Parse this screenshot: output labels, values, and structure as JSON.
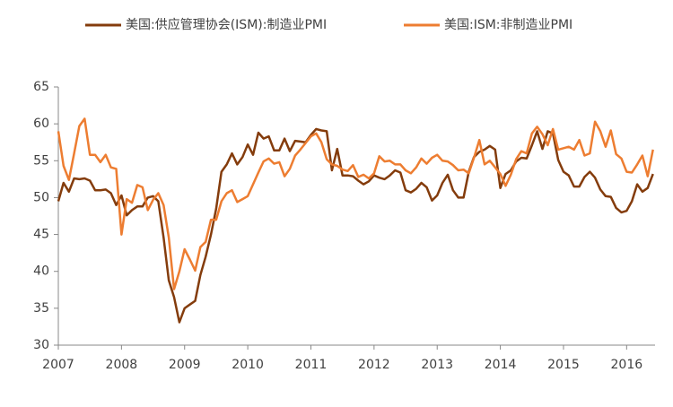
{
  "chart_data": {
    "type": "line",
    "x": [
      2007,
      2007.083,
      2007.167,
      2007.25,
      2007.333,
      2007.417,
      2007.5,
      2007.583,
      2007.667,
      2007.75,
      2007.833,
      2007.917,
      2008,
      2008.083,
      2008.167,
      2008.25,
      2008.333,
      2008.417,
      2008.5,
      2008.583,
      2008.667,
      2008.75,
      2008.833,
      2008.917,
      2009,
      2009.083,
      2009.167,
      2009.25,
      2009.333,
      2009.417,
      2009.5,
      2009.583,
      2009.667,
      2009.75,
      2009.833,
      2009.917,
      2010,
      2010.083,
      2010.167,
      2010.25,
      2010.333,
      2010.417,
      2010.5,
      2010.583,
      2010.667,
      2010.75,
      2010.833,
      2010.917,
      2011,
      2011.083,
      2011.167,
      2011.25,
      2011.333,
      2011.417,
      2011.5,
      2011.583,
      2011.667,
      2011.75,
      2011.833,
      2011.917,
      2012,
      2012.083,
      2012.167,
      2012.25,
      2012.333,
      2012.417,
      2012.5,
      2012.583,
      2012.667,
      2012.75,
      2012.833,
      2012.917,
      2013,
      2013.083,
      2013.167,
      2013.25,
      2013.333,
      2013.417,
      2013.5,
      2013.583,
      2013.667,
      2013.75,
      2013.833,
      2013.917,
      2014,
      2014.083,
      2014.167,
      2014.25,
      2014.333,
      2014.417,
      2014.5,
      2014.583,
      2014.667,
      2014.75,
      2014.833,
      2014.917,
      2015,
      2015.083,
      2015.167,
      2015.25,
      2015.333,
      2015.417,
      2015.5,
      2015.583,
      2015.667,
      2015.75,
      2015.833,
      2015.917,
      2016,
      2016.083,
      2016.167,
      2016.25,
      2016.333,
      2016.417
    ],
    "series": [
      {
        "name": "美国:供应管理协会(ISM):制造业PMI",
        "color": "#843c0c",
        "values": [
          49.5,
          52,
          50.8,
          52.6,
          52.5,
          52.6,
          52.3,
          51,
          51,
          51.1,
          50.6,
          49,
          50.3,
          47.6,
          48.3,
          48.8,
          48.8,
          50,
          50.2,
          49.5,
          44.6,
          38.8,
          36.5,
          33.1,
          35,
          35.5,
          36,
          39.5,
          42,
          45,
          48.5,
          53.5,
          54.5,
          56,
          54.5,
          55.5,
          57.2,
          55.8,
          58.8,
          58,
          58.3,
          56.4,
          56.4,
          58,
          56.3,
          57.7,
          57.6,
          57.5,
          58.5,
          59.3,
          59.1,
          59,
          53.7,
          56.6,
          53,
          53,
          52.9,
          52.3,
          51.8,
          52.2,
          53,
          52.7,
          52.5,
          53,
          53.7,
          53.4,
          51,
          50.7,
          51.2,
          52,
          51.4,
          49.6,
          50.3,
          52,
          53.1,
          51,
          50,
          50,
          53.5,
          55.5,
          56.2,
          56.5,
          57,
          56.5,
          51.3,
          53.2,
          53.7,
          54.9,
          55.4,
          55.3,
          57.1,
          59,
          56.6,
          59,
          58.7,
          55.1,
          53.5,
          53,
          51.5,
          51.5,
          52.8,
          53.5,
          52.7,
          51.1,
          50.2,
          50.1,
          48.6,
          48,
          48.2,
          49.5,
          51.8,
          50.8,
          51.3,
          53.2
        ]
      },
      {
        "name": "美国:ISM:非制造业PMI",
        "color": "#ed7d31",
        "values": [
          59,
          54.3,
          52.4,
          56,
          59.7,
          60.7,
          55.8,
          55.8,
          54.8,
          55.8,
          54.1,
          53.9,
          45,
          49.8,
          49.3,
          51.7,
          51.4,
          48.3,
          49.7,
          50.6,
          49,
          44.6,
          37.6,
          40,
          43,
          41.6,
          40.1,
          43.3,
          44,
          47,
          47,
          49.5,
          50.6,
          51,
          49.4,
          49.8,
          50.2,
          51.8,
          53.4,
          54.9,
          55.3,
          54.6,
          54.8,
          52.9,
          53.9,
          55.7,
          56.5,
          57.4,
          58.3,
          58.7,
          57.5,
          55.2,
          54.5,
          54.3,
          53.8,
          53.6,
          54.4,
          52.8,
          53.1,
          52.6,
          53.3,
          55.6,
          54.9,
          55,
          54.5,
          54.5,
          53.7,
          53.3,
          54.1,
          55.3,
          54.6,
          55.4,
          55.8,
          55,
          54.9,
          54.4,
          53.7,
          53.8,
          53.3,
          55.4,
          57.8,
          54.5,
          55,
          54.1,
          53.2,
          51.6,
          53.1,
          55.2,
          56.3,
          56,
          58.7,
          59.6,
          58.6,
          57.1,
          59.3,
          56.5,
          56.7,
          56.9,
          56.5,
          57.8,
          55.7,
          56,
          60.3,
          59,
          56.9,
          59.1,
          55.9,
          55.3,
          53.5,
          53.4,
          54.5,
          55.7,
          52.9,
          56.5
        ]
      }
    ],
    "xlim": [
      2007,
      2016.45
    ],
    "xticks": [
      2007,
      2008,
      2009,
      2010,
      2011,
      2012,
      2013,
      2014,
      2015,
      2016
    ],
    "ylim": [
      30,
      65
    ],
    "yticks": [
      30,
      35,
      40,
      45,
      50,
      55,
      60,
      65
    ],
    "grid": false,
    "legend": "top"
  }
}
